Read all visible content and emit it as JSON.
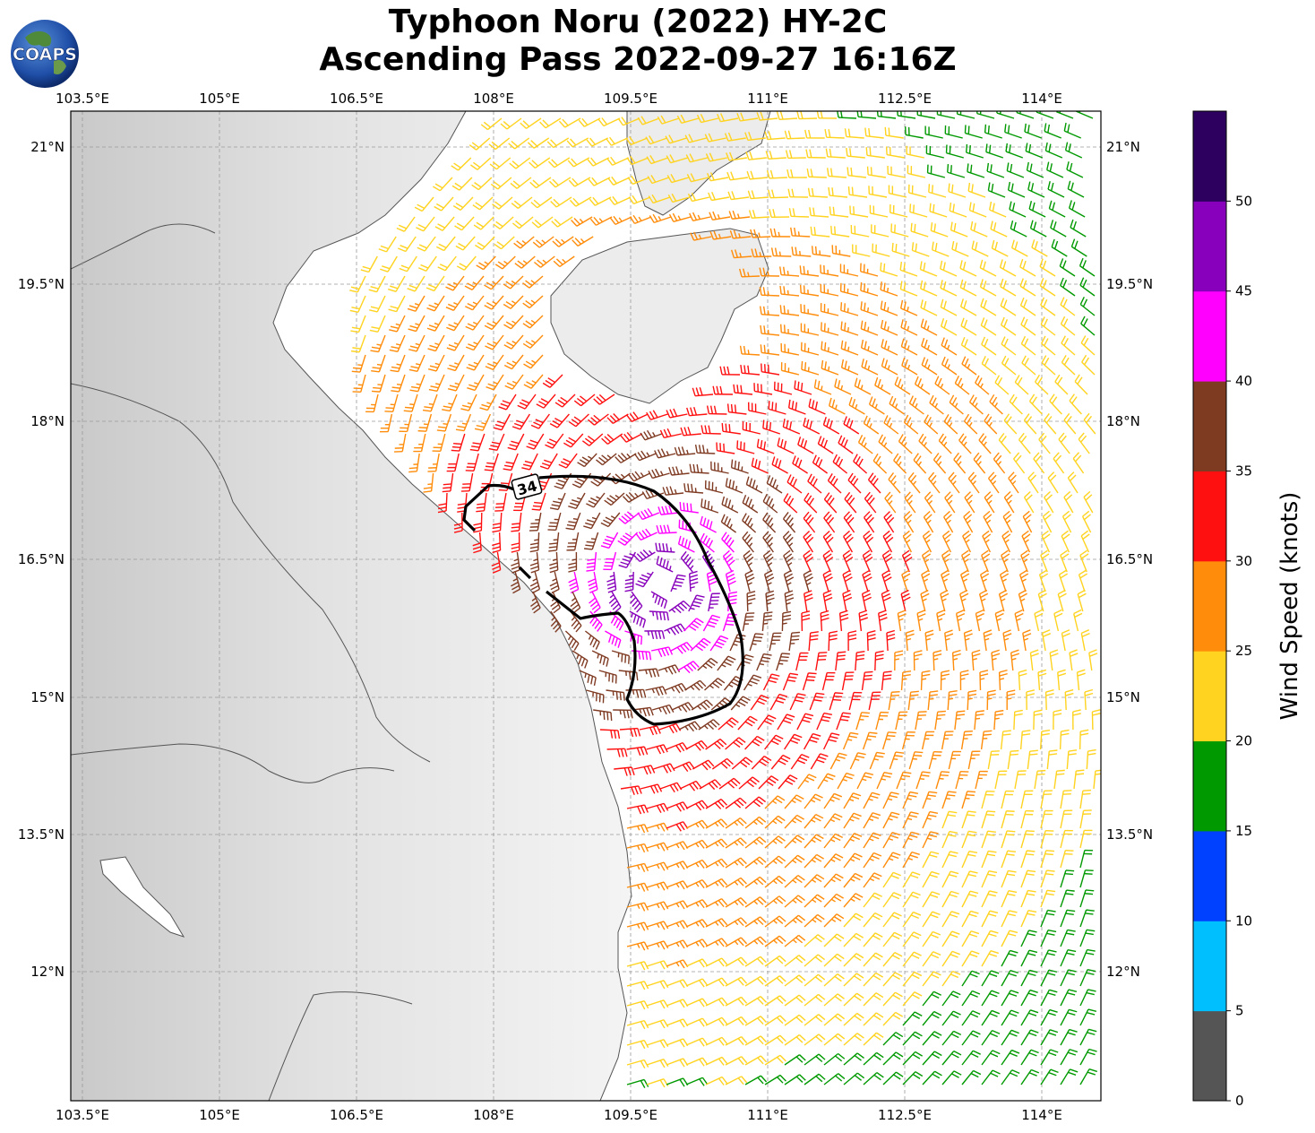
{
  "title": {
    "line1": "Typhoon Noru (2022) HY-2C",
    "line2": "Ascending Pass 2022-09-27 16:16Z"
  },
  "logo": {
    "text": "COAPS"
  },
  "map": {
    "lon_labels": [
      "103.5°E",
      "105°E",
      "106.5°E",
      "108°E",
      "109.5°E",
      "111°E",
      "112.5°E",
      "114°E"
    ],
    "lat_labels": [
      "21°N",
      "19.5°N",
      "18°N",
      "16.5°N",
      "15°N",
      "13.5°N",
      "12°N"
    ],
    "wind_radius_label": "34",
    "lon_range": [
      103.4,
      114.65
    ],
    "lat_range": [
      10.6,
      21.4
    ]
  },
  "colorbar": {
    "label": "Wind Speed (knots)",
    "ticks": [
      "0",
      "5",
      "10",
      "15",
      "20",
      "25",
      "30",
      "35",
      "40",
      "45",
      "50"
    ],
    "colors": [
      "#555555",
      "#00bfff",
      "#0040ff",
      "#009900",
      "#ffd320",
      "#ff8c0a",
      "#ff1010",
      "#7f3a22",
      "#ff00ff",
      "#8800bb",
      "#2d0060"
    ]
  },
  "storm": {
    "center_lon": 109.85,
    "center_lat": 16.25
  }
}
